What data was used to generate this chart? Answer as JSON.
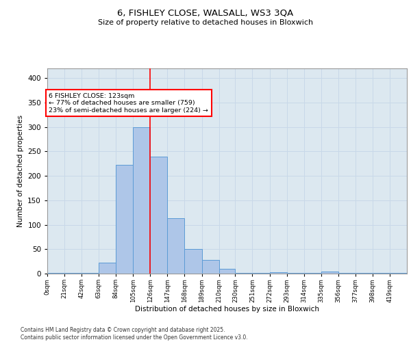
{
  "title1": "6, FISHLEY CLOSE, WALSALL, WS3 3QA",
  "title2": "Size of property relative to detached houses in Bloxwich",
  "xlabel": "Distribution of detached houses by size in Bloxwich",
  "ylabel": "Number of detached properties",
  "bin_labels": [
    "0sqm",
    "21sqm",
    "42sqm",
    "63sqm",
    "84sqm",
    "105sqm",
    "126sqm",
    "147sqm",
    "168sqm",
    "189sqm",
    "210sqm",
    "230sqm",
    "251sqm",
    "272sqm",
    "293sqm",
    "314sqm",
    "335sqm",
    "356sqm",
    "377sqm",
    "398sqm",
    "419sqm"
  ],
  "bin_edges": [
    0,
    21,
    42,
    63,
    84,
    105,
    126,
    147,
    168,
    189,
    210,
    230,
    251,
    272,
    293,
    314,
    335,
    356,
    377,
    398,
    419,
    440
  ],
  "bar_heights": [
    2,
    2,
    2,
    23,
    222,
    300,
    240,
    113,
    51,
    28,
    10,
    2,
    2,
    3,
    2,
    2,
    4,
    2,
    2,
    2,
    1
  ],
  "bar_color": "#aec6e8",
  "bar_edge_color": "#5b9bd5",
  "vline_x": 126,
  "vline_color": "red",
  "annotation_text": "6 FISHLEY CLOSE: 123sqm\n← 77% of detached houses are smaller (759)\n23% of semi-detached houses are larger (224) →",
  "annotation_box_color": "white",
  "annotation_border_color": "red",
  "grid_color": "#c8d8e8",
  "background_color": "#dce8f0",
  "ylim_max": 420,
  "yticks": [
    0,
    50,
    100,
    150,
    200,
    250,
    300,
    350,
    400
  ],
  "footer": "Contains HM Land Registry data © Crown copyright and database right 2025.\nContains public sector information licensed under the Open Government Licence v3.0."
}
